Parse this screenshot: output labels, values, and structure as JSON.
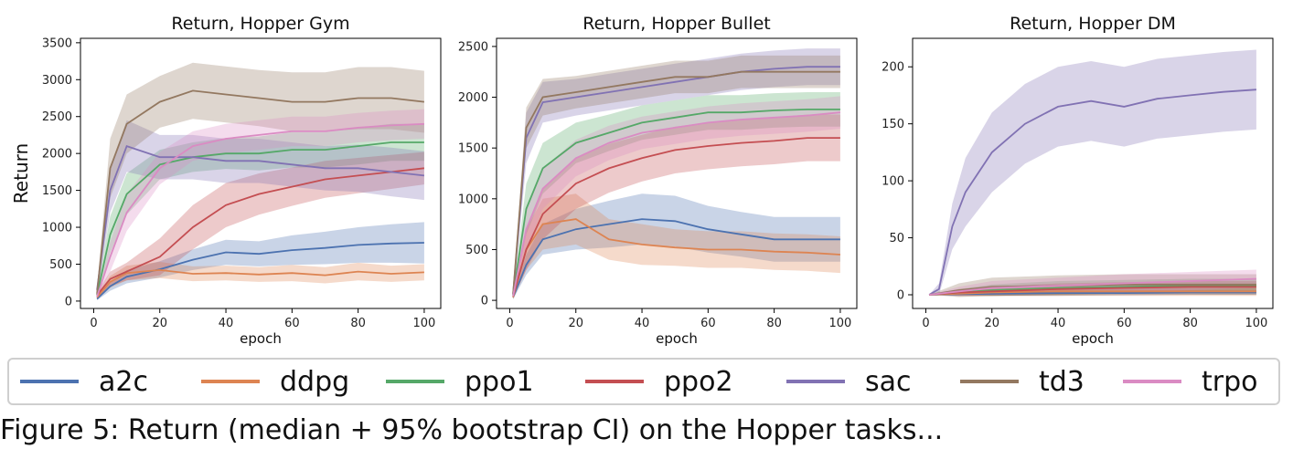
{
  "chart_data": [
    {
      "type": "line",
      "title": "Return, Hopper Gym",
      "xlabel": "epoch",
      "ylabel": "Return",
      "xlim": [
        -4,
        105
      ],
      "ylim": [
        -100,
        3560
      ],
      "xticks": [
        0,
        20,
        40,
        60,
        80,
        100
      ],
      "yticks": [
        0,
        500,
        1000,
        1500,
        2000,
        2500,
        3000,
        3500
      ],
      "grid": false,
      "series": [
        {
          "name": "a2c",
          "color": "#4C72B0",
          "x": [
            1,
            5,
            10,
            20,
            30,
            40,
            50,
            60,
            70,
            80,
            90,
            100
          ],
          "y": [
            30,
            200,
            330,
            430,
            560,
            660,
            640,
            690,
            720,
            760,
            780,
            790
          ],
          "band": [
            20,
            60,
            90,
            110,
            140,
            170,
            170,
            200,
            220,
            240,
            260,
            280
          ]
        },
        {
          "name": "ddpg",
          "color": "#DD8452",
          "x": [
            1,
            5,
            10,
            20,
            30,
            40,
            50,
            60,
            70,
            80,
            90,
            100
          ],
          "y": [
            50,
            260,
            380,
            420,
            370,
            380,
            360,
            380,
            350,
            400,
            370,
            390
          ],
          "band": [
            30,
            80,
            100,
            110,
            100,
            100,
            100,
            110,
            110,
            120,
            110,
            110
          ]
        },
        {
          "name": "ppo1",
          "color": "#55A868",
          "x": [
            1,
            5,
            10,
            20,
            30,
            40,
            50,
            60,
            70,
            80,
            90,
            100
          ],
          "y": [
            80,
            900,
            1450,
            1850,
            1950,
            2000,
            2000,
            2050,
            2050,
            2100,
            2150,
            2150
          ],
          "band": [
            60,
            250,
            280,
            200,
            200,
            210,
            230,
            240,
            240,
            250,
            250,
            250
          ]
        },
        {
          "name": "ppo2",
          "color": "#C44E52",
          "x": [
            1,
            5,
            10,
            20,
            30,
            40,
            50,
            60,
            70,
            80,
            90,
            100
          ],
          "y": [
            80,
            300,
            400,
            600,
            1000,
            1300,
            1450,
            1550,
            1650,
            1700,
            1750,
            1800
          ],
          "band": [
            40,
            100,
            120,
            250,
            300,
            300,
            280,
            260,
            250,
            240,
            230,
            220
          ]
        },
        {
          "name": "sac",
          "color": "#8172B3",
          "x": [
            1,
            5,
            10,
            20,
            30,
            40,
            50,
            60,
            70,
            80,
            90,
            100
          ],
          "y": [
            150,
            1500,
            2100,
            1950,
            1950,
            1900,
            1900,
            1850,
            1800,
            1800,
            1750,
            1700
          ],
          "band": [
            80,
            300,
            350,
            300,
            300,
            300,
            300,
            300,
            300,
            320,
            330,
            330
          ]
        },
        {
          "name": "td3",
          "color": "#937860",
          "x": [
            1,
            5,
            10,
            20,
            30,
            40,
            50,
            60,
            70,
            80,
            90,
            100
          ],
          "y": [
            100,
            1800,
            2400,
            2700,
            2850,
            2800,
            2750,
            2700,
            2700,
            2750,
            2750,
            2700
          ],
          "band": [
            80,
            400,
            400,
            350,
            380,
            380,
            380,
            400,
            400,
            420,
            420,
            420
          ]
        },
        {
          "name": "trpo",
          "color": "#DA8BC3",
          "x": [
            1,
            5,
            10,
            20,
            30,
            40,
            50,
            60,
            70,
            80,
            90,
            100
          ],
          "y": [
            60,
            600,
            1200,
            1800,
            2100,
            2200,
            2250,
            2300,
            2300,
            2350,
            2380,
            2400
          ],
          "band": [
            40,
            200,
            250,
            220,
            200,
            200,
            200,
            200,
            200,
            200,
            200,
            200
          ]
        }
      ]
    },
    {
      "type": "line",
      "title": "Return, Hopper Bullet",
      "xlabel": "epoch",
      "ylabel": "",
      "xlim": [
        -4,
        105
      ],
      "ylim": [
        -80,
        2580
      ],
      "xticks": [
        0,
        20,
        40,
        60,
        80,
        100
      ],
      "yticks": [
        0,
        500,
        1000,
        1500,
        2000,
        2500
      ],
      "grid": false,
      "series": [
        {
          "name": "a2c",
          "color": "#4C72B0",
          "x": [
            1,
            5,
            10,
            20,
            30,
            40,
            50,
            60,
            70,
            80,
            90,
            100
          ],
          "y": [
            30,
            350,
            600,
            700,
            750,
            800,
            780,
            700,
            650,
            600,
            600,
            600
          ],
          "band": [
            20,
            100,
            150,
            200,
            230,
            250,
            250,
            230,
            220,
            220,
            220,
            220
          ]
        },
        {
          "name": "ddpg",
          "color": "#DD8452",
          "x": [
            1,
            5,
            10,
            20,
            30,
            40,
            50,
            60,
            70,
            80,
            90,
            100
          ],
          "y": [
            30,
            500,
            750,
            800,
            600,
            550,
            520,
            500,
            500,
            480,
            470,
            450
          ],
          "band": [
            20,
            200,
            250,
            250,
            200,
            200,
            180,
            180,
            180,
            180,
            180,
            180
          ]
        },
        {
          "name": "ppo1",
          "color": "#55A868",
          "x": [
            1,
            5,
            10,
            20,
            30,
            40,
            50,
            60,
            70,
            80,
            90,
            100
          ],
          "y": [
            50,
            900,
            1300,
            1550,
            1650,
            1750,
            1800,
            1850,
            1850,
            1870,
            1880,
            1880
          ],
          "band": [
            30,
            250,
            250,
            200,
            180,
            170,
            170,
            170,
            170,
            170,
            170,
            170
          ]
        },
        {
          "name": "ppo2",
          "color": "#C44E52",
          "x": [
            1,
            5,
            10,
            20,
            30,
            40,
            50,
            60,
            70,
            80,
            90,
            100
          ],
          "y": [
            40,
            500,
            850,
            1150,
            1300,
            1400,
            1480,
            1520,
            1550,
            1570,
            1600,
            1600
          ],
          "band": [
            20,
            200,
            250,
            250,
            240,
            230,
            230,
            230,
            230,
            230,
            230,
            230
          ]
        },
        {
          "name": "sac",
          "color": "#8172B3",
          "x": [
            1,
            5,
            10,
            20,
            30,
            40,
            50,
            60,
            70,
            80,
            90,
            100
          ],
          "y": [
            60,
            1600,
            1950,
            2000,
            2050,
            2100,
            2150,
            2200,
            2250,
            2280,
            2300,
            2300
          ],
          "band": [
            40,
            250,
            200,
            180,
            180,
            180,
            180,
            180,
            180,
            180,
            180,
            180
          ]
        },
        {
          "name": "td3",
          "color": "#937860",
          "x": [
            1,
            5,
            10,
            20,
            30,
            40,
            50,
            60,
            70,
            80,
            90,
            100
          ],
          "y": [
            60,
            1700,
            2000,
            2050,
            2100,
            2150,
            2200,
            2200,
            2250,
            2250,
            2250,
            2250
          ],
          "band": [
            40,
            200,
            180,
            160,
            160,
            160,
            160,
            160,
            160,
            160,
            160,
            160
          ]
        },
        {
          "name": "trpo",
          "color": "#DA8BC3",
          "x": [
            1,
            5,
            10,
            20,
            30,
            40,
            50,
            60,
            70,
            80,
            90,
            100
          ],
          "y": [
            40,
            700,
            1100,
            1400,
            1550,
            1650,
            1700,
            1750,
            1780,
            1800,
            1820,
            1850
          ],
          "band": [
            20,
            200,
            200,
            180,
            170,
            160,
            160,
            160,
            160,
            160,
            160,
            160
          ]
        }
      ]
    },
    {
      "type": "line",
      "title": "Return, Hopper DM",
      "xlabel": "epoch",
      "ylabel": "",
      "xlim": [
        -4,
        105
      ],
      "ylim": [
        -12,
        225
      ],
      "xticks": [
        0,
        20,
        40,
        60,
        80,
        100
      ],
      "yticks": [
        0,
        50,
        100,
        150,
        200
      ],
      "grid": false,
      "series": [
        {
          "name": "a2c",
          "color": "#4C72B0",
          "x": [
            1,
            10,
            20,
            40,
            60,
            80,
            100
          ],
          "y": [
            0,
            0.5,
            1,
            1.5,
            1.5,
            2,
            2
          ],
          "band": [
            0,
            1,
            2,
            2,
            2,
            2,
            2
          ]
        },
        {
          "name": "ddpg",
          "color": "#DD8452",
          "x": [
            1,
            10,
            20,
            40,
            60,
            80,
            100
          ],
          "y": [
            0,
            1,
            2,
            3,
            3,
            3,
            3
          ],
          "band": [
            0,
            2,
            3,
            4,
            4,
            4,
            4
          ]
        },
        {
          "name": "ppo1",
          "color": "#55A868",
          "x": [
            1,
            10,
            20,
            40,
            60,
            80,
            100
          ],
          "y": [
            0,
            2,
            4,
            6,
            7,
            8,
            8
          ],
          "band": [
            0,
            3,
            5,
            6,
            6,
            6,
            6
          ]
        },
        {
          "name": "ppo2",
          "color": "#C44E52",
          "x": [
            1,
            10,
            20,
            40,
            60,
            80,
            100
          ],
          "y": [
            0,
            2,
            3,
            5,
            6,
            7,
            7
          ],
          "band": [
            0,
            3,
            4,
            5,
            5,
            5,
            5
          ]
        },
        {
          "name": "sac",
          "color": "#8172B3",
          "x": [
            1,
            4,
            8,
            12,
            20,
            30,
            40,
            50,
            60,
            70,
            80,
            90,
            100
          ],
          "y": [
            0,
            5,
            60,
            90,
            125,
            150,
            165,
            170,
            165,
            172,
            175,
            178,
            180
          ],
          "band": [
            0,
            5,
            20,
            30,
            35,
            35,
            35,
            35,
            35,
            35,
            35,
            35,
            35
          ]
        },
        {
          "name": "td3",
          "color": "#937860",
          "x": [
            1,
            10,
            20,
            40,
            60,
            80,
            100
          ],
          "y": [
            0,
            4,
            7,
            8,
            9,
            9,
            9
          ],
          "band": [
            0,
            6,
            8,
            9,
            9,
            9,
            9
          ]
        },
        {
          "name": "trpo",
          "color": "#DA8BC3",
          "x": [
            1,
            10,
            20,
            40,
            60,
            80,
            100
          ],
          "y": [
            0,
            3,
            6,
            8,
            10,
            12,
            14
          ],
          "band": [
            0,
            4,
            6,
            7,
            8,
            8,
            8
          ]
        }
      ]
    }
  ],
  "legend": [
    {
      "label": "a2c",
      "color": "#4C72B0"
    },
    {
      "label": "ddpg",
      "color": "#DD8452"
    },
    {
      "label": "ppo1",
      "color": "#55A868"
    },
    {
      "label": "ppo2",
      "color": "#C44E52"
    },
    {
      "label": "sac",
      "color": "#8172B3"
    },
    {
      "label": "td3",
      "color": "#937860"
    },
    {
      "label": "trpo",
      "color": "#DA8BC3"
    }
  ],
  "caption": "Figure 5: Return (median + 95% bootstrap CI) on the Hopper tasks..."
}
